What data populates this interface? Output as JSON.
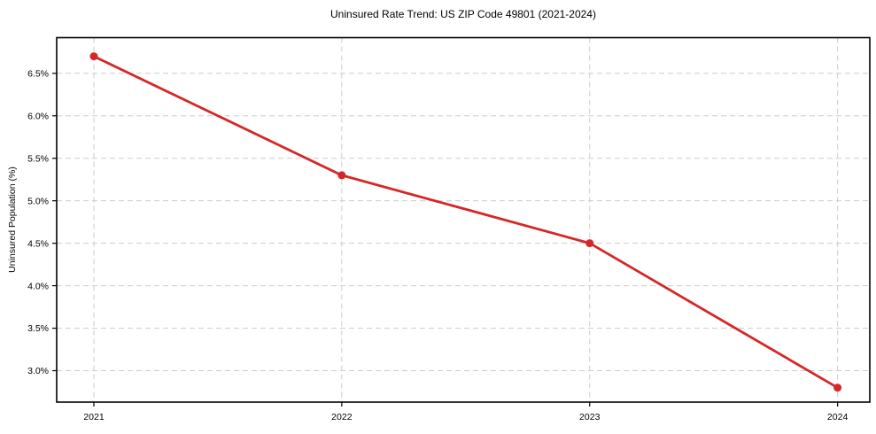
{
  "chart_data": {
    "type": "line",
    "title": "Uninsured Rate Trend: US ZIP Code 49801 (2021-2024)",
    "xlabel": "",
    "ylabel": "Uninsured Population (%)",
    "x": [
      2021,
      2022,
      2023,
      2024
    ],
    "x_tick_labels": [
      "2021",
      "2022",
      "2023",
      "2024"
    ],
    "values": [
      6.7,
      5.3,
      4.5,
      2.8
    ],
    "y_ticks": [
      3.0,
      3.5,
      4.0,
      4.5,
      5.0,
      5.5,
      6.0,
      6.5
    ],
    "y_tick_labels": [
      "3.0%",
      "3.5%",
      "4.0%",
      "4.5%",
      "5.0%",
      "5.5%",
      "6.0%",
      "6.5%"
    ],
    "xlim": [
      2020.85,
      2024.13
    ],
    "ylim": [
      2.63,
      6.92
    ],
    "grid": true,
    "grid_style": "dashed",
    "legend": false,
    "marker": "circle",
    "colors": {
      "line": "#d62728",
      "marker": "#d62728",
      "grid": "#cccccc",
      "spine": "#000000",
      "text": "#000000",
      "background": "#ffffff"
    }
  }
}
